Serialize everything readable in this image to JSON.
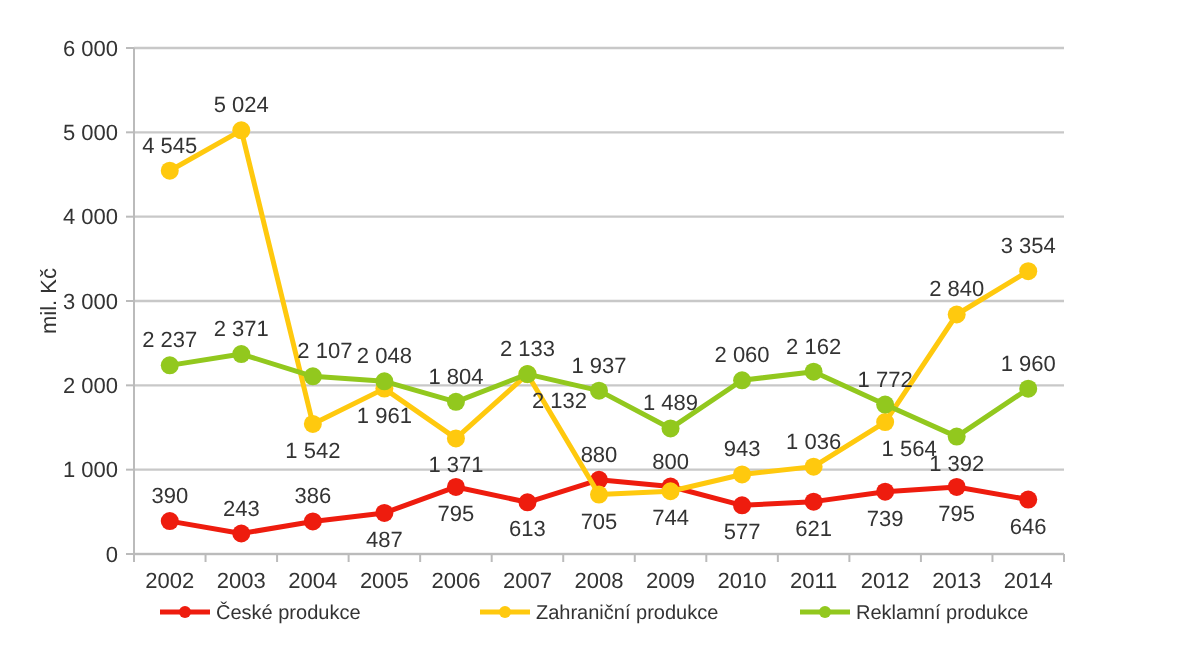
{
  "chart_data": {
    "type": "line",
    "ylabel": "mil. Kč",
    "categories": [
      "2002",
      "2003",
      "2004",
      "2005",
      "2006",
      "2007",
      "2008",
      "2009",
      "2010",
      "2011",
      "2012",
      "2013",
      "2014"
    ],
    "series": [
      {
        "name": "České produkce",
        "color": "#ee1c0e",
        "values": [
          390,
          243,
          386,
          487,
          795,
          613,
          880,
          800,
          577,
          621,
          739,
          795,
          646
        ]
      },
      {
        "name": "Zahraniční produkce",
        "color": "#ffc90e",
        "values": [
          4545,
          5024,
          1542,
          1961,
          1371,
          2132,
          705,
          744,
          943,
          1036,
          1564,
          2840,
          3354
        ]
      },
      {
        "name": "Reklamní produkce",
        "color": "#92c81e",
        "values": [
          2237,
          2371,
          2107,
          2048,
          1804,
          2133,
          1937,
          1489,
          2060,
          2162,
          1772,
          1392,
          1960
        ]
      }
    ],
    "ylim": [
      0,
      6000
    ],
    "yticks": [
      {
        "value": 0,
        "label": "0"
      },
      {
        "value": 1000,
        "label": "1 000"
      },
      {
        "value": 2000,
        "label": "2 000"
      },
      {
        "value": 3000,
        "label": "3 000"
      },
      {
        "value": 4000,
        "label": "4 000"
      },
      {
        "value": 5000,
        "label": "5 000"
      },
      {
        "value": 6000,
        "label": "6 000"
      }
    ],
    "grid": "y",
    "legend": "bottom",
    "marker": "circle",
    "line_style": "solid",
    "data_labels": true
  }
}
